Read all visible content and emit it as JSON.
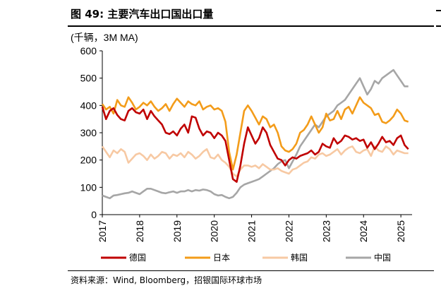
{
  "figure": {
    "title": "图 49: 主要汽车出口国出口量",
    "source": "资料来源：Wind, Bloomberg，招银国际环球市场"
  },
  "chart_data": {
    "type": "line",
    "unit_label": "(千辆，3M MA)",
    "ylim": [
      0,
      600
    ],
    "yticks": [
      0,
      100,
      200,
      300,
      400,
      500,
      600
    ],
    "xlim": [
      2017.0,
      2025.3
    ],
    "xticks": [
      "2017",
      "2018",
      "2019",
      "2020",
      "2021",
      "2022",
      "2023",
      "2024",
      "2025"
    ],
    "legend_position": "bottom",
    "grid": false,
    "x": [
      2017.0,
      2017.1,
      2017.2,
      2017.3,
      2017.4,
      2017.5,
      2017.6,
      2017.7,
      2017.8,
      2017.9,
      2018.0,
      2018.1,
      2018.2,
      2018.3,
      2018.4,
      2018.5,
      2018.6,
      2018.7,
      2018.8,
      2018.9,
      2019.0,
      2019.1,
      2019.2,
      2019.3,
      2019.4,
      2019.5,
      2019.6,
      2019.7,
      2019.8,
      2019.9,
      2020.0,
      2020.1,
      2020.2,
      2020.3,
      2020.4,
      2020.5,
      2020.6,
      2020.7,
      2020.8,
      2020.9,
      2021.0,
      2021.1,
      2021.2,
      2021.3,
      2021.4,
      2021.5,
      2021.6,
      2021.7,
      2021.8,
      2021.9,
      2022.0,
      2022.1,
      2022.2,
      2022.3,
      2022.4,
      2022.5,
      2022.6,
      2022.7,
      2022.8,
      2022.9,
      2023.0,
      2023.1,
      2023.2,
      2023.3,
      2023.4,
      2023.5,
      2023.6,
      2023.7,
      2023.8,
      2023.9,
      2024.0,
      2024.1,
      2024.2,
      2024.3,
      2024.4,
      2024.5,
      2024.6,
      2024.7,
      2024.8,
      2024.9,
      2025.0,
      2025.1,
      2025.2
    ],
    "series": [
      {
        "name": "德国",
        "color": "#c00000",
        "values": [
          395,
          350,
          380,
          390,
          365,
          350,
          345,
          380,
          390,
          375,
          370,
          385,
          350,
          380,
          360,
          345,
          330,
          300,
          295,
          305,
          290,
          315,
          330,
          300,
          360,
          355,
          315,
          290,
          305,
          300,
          280,
          300,
          290,
          270,
          200,
          130,
          120,
          180,
          260,
          320,
          290,
          260,
          280,
          320,
          300,
          255,
          230,
          205,
          200,
          180,
          200,
          210,
          205,
          215,
          220,
          225,
          235,
          220,
          230,
          260,
          250,
          245,
          280,
          260,
          270,
          290,
          285,
          275,
          280,
          270,
          275,
          245,
          265,
          240,
          260,
          285,
          265,
          270,
          255,
          280,
          290,
          255,
          240
        ]
      },
      {
        "name": "日本",
        "color": "#f39c1a",
        "values": [
          405,
          385,
          395,
          370,
          420,
          400,
          395,
          430,
          410,
          385,
          395,
          410,
          400,
          415,
          395,
          380,
          390,
          405,
          380,
          405,
          425,
          410,
          395,
          415,
          405,
          400,
          415,
          385,
          395,
          400,
          385,
          390,
          380,
          340,
          230,
          165,
          220,
          300,
          380,
          400,
          380,
          355,
          330,
          360,
          350,
          320,
          330,
          300,
          250,
          235,
          230,
          240,
          260,
          300,
          310,
          330,
          360,
          330,
          300,
          320,
          370,
          345,
          350,
          380,
          350,
          385,
          395,
          370,
          400,
          430,
          410,
          400,
          390,
          365,
          370,
          340,
          335,
          345,
          360,
          385,
          370,
          345,
          340
        ]
      },
      {
        "name": "韩国",
        "color": "#f7c9a3",
        "values": [
          250,
          230,
          210,
          235,
          225,
          240,
          230,
          190,
          205,
          220,
          225,
          215,
          200,
          220,
          205,
          215,
          230,
          225,
          205,
          220,
          215,
          225,
          210,
          230,
          220,
          205,
          215,
          230,
          240,
          210,
          205,
          220,
          200,
          190,
          175,
          150,
          140,
          165,
          180,
          180,
          175,
          180,
          170,
          185,
          175,
          165,
          165,
          170,
          160,
          155,
          150,
          165,
          170,
          180,
          190,
          195,
          210,
          205,
          220,
          225,
          215,
          220,
          230,
          240,
          220,
          235,
          245,
          250,
          230,
          225,
          235,
          240,
          215,
          250,
          235,
          230,
          250,
          240,
          220,
          235,
          230,
          225,
          225
        ]
      },
      {
        "name": "中国",
        "color": "#a6a6a6",
        "values": [
          70,
          65,
          60,
          70,
          72,
          75,
          78,
          80,
          85,
          80,
          75,
          85,
          95,
          95,
          90,
          85,
          80,
          78,
          82,
          85,
          80,
          85,
          85,
          90,
          85,
          90,
          88,
          92,
          90,
          85,
          75,
          70,
          72,
          65,
          60,
          65,
          80,
          100,
          110,
          115,
          120,
          125,
          130,
          140,
          150,
          160,
          170,
          185,
          195,
          200,
          170,
          195,
          220,
          250,
          270,
          290,
          310,
          330,
          320,
          340,
          360,
          370,
          380,
          400,
          410,
          420,
          440,
          460,
          480,
          500,
          470,
          440,
          460,
          490,
          480,
          500,
          510,
          520,
          530,
          510,
          490,
          470,
          470
        ]
      }
    ]
  }
}
